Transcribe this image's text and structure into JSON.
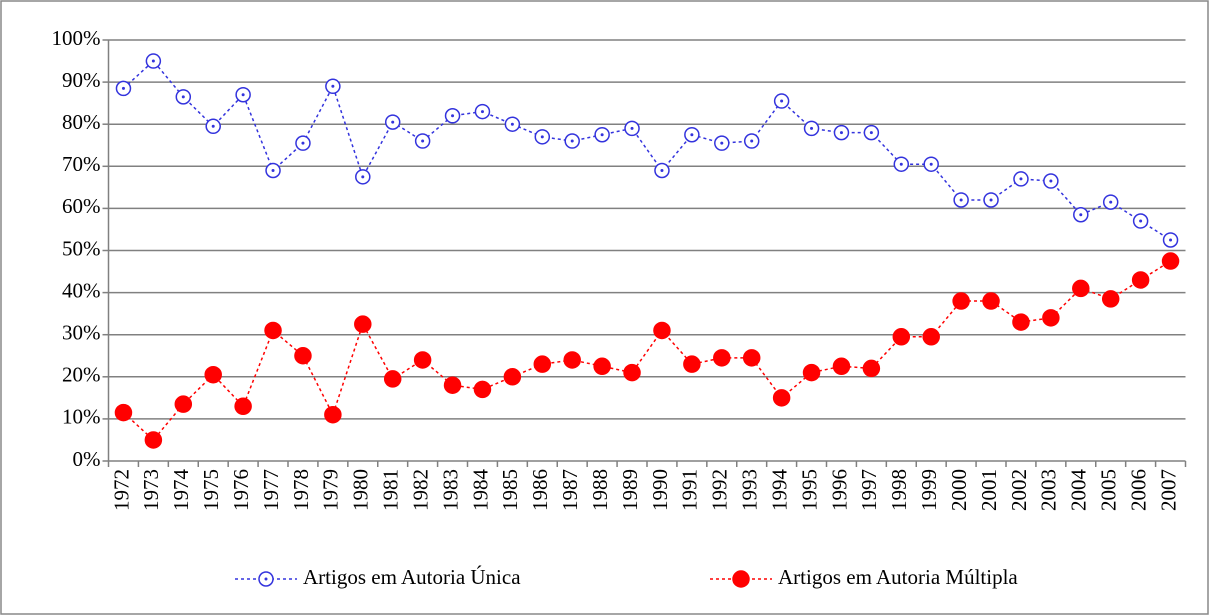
{
  "chart_data": {
    "type": "line",
    "categories": [
      "1972",
      "1973",
      "1974",
      "1975",
      "1976",
      "1977",
      "1978",
      "1979",
      "1980",
      "1981",
      "1982",
      "1983",
      "1984",
      "1985",
      "1986",
      "1987",
      "1988",
      "1989",
      "1990",
      "1991",
      "1992",
      "1993",
      "1994",
      "1995",
      "1996",
      "1997",
      "1998",
      "1999",
      "2000",
      "2001",
      "2002",
      "2003",
      "2004",
      "2005",
      "2006",
      "2007"
    ],
    "series": [
      {
        "name": "Artigos em Autoria Única",
        "color": "#3333dd",
        "marker": "open-circle",
        "values": [
          88.5,
          95,
          86.5,
          79.5,
          87,
          69,
          75.5,
          89,
          67.5,
          80.5,
          76,
          82,
          83,
          80,
          77,
          76,
          77.5,
          79,
          69,
          77.5,
          75.5,
          76,
          85.5,
          79,
          78,
          78,
          70.5,
          70.5,
          62,
          62,
          67,
          66.5,
          58.5,
          61.5,
          57,
          52.5
        ]
      },
      {
        "name": "Artigos em Autoria Múltipla",
        "color": "#ff0000",
        "marker": "filled-circle",
        "values": [
          11.5,
          5,
          13.5,
          20.5,
          13,
          31,
          25,
          11,
          32.5,
          19.5,
          24,
          18,
          17,
          20,
          23,
          24,
          22.5,
          21,
          31,
          23,
          24.5,
          24.5,
          15,
          21,
          22.5,
          22,
          29.5,
          29.5,
          38,
          38,
          33,
          34,
          41,
          38.5,
          43,
          47.5
        ]
      }
    ],
    "ylim": [
      0,
      100
    ],
    "yticks": [
      {
        "value": 0,
        "label": "0%"
      },
      {
        "value": 10,
        "label": "10%"
      },
      {
        "value": 20,
        "label": "20%"
      },
      {
        "value": 30,
        "label": "30%"
      },
      {
        "value": 40,
        "label": "40%"
      },
      {
        "value": 50,
        "label": "50%"
      },
      {
        "value": 60,
        "label": "60%"
      },
      {
        "value": 70,
        "label": "70%"
      },
      {
        "value": 80,
        "label": "80%"
      },
      {
        "value": 90,
        "label": "90%"
      },
      {
        "value": 100,
        "label": "100%"
      }
    ],
    "grid": true,
    "legend": "bottom"
  }
}
